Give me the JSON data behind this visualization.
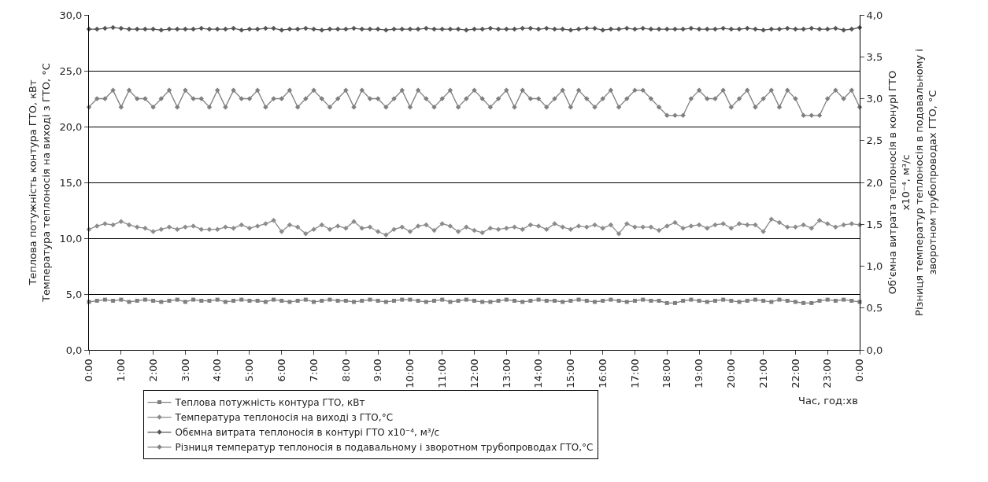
{
  "chart_data": {
    "type": "line",
    "x": [
      0,
      0.25,
      0.5,
      0.75,
      1,
      1.25,
      1.5,
      1.75,
      2,
      2.25,
      2.5,
      2.75,
      3,
      3.25,
      3.5,
      3.75,
      4,
      4.25,
      4.5,
      4.75,
      5,
      5.25,
      5.5,
      5.75,
      6,
      6.25,
      6.5,
      6.75,
      7,
      7.25,
      7.5,
      7.75,
      8,
      8.25,
      8.5,
      8.75,
      9,
      9.25,
      9.5,
      9.75,
      10,
      10.25,
      10.5,
      10.75,
      11,
      11.25,
      11.5,
      11.75,
      12,
      12.25,
      12.5,
      12.75,
      13,
      13.25,
      13.5,
      13.75,
      14,
      14.25,
      14.5,
      14.75,
      15,
      15.25,
      15.5,
      15.75,
      16,
      16.25,
      16.5,
      16.75,
      17,
      17.25,
      17.5,
      17.75,
      18,
      18.25,
      18.5,
      18.75,
      19,
      19.25,
      19.5,
      19.75,
      20,
      20.25,
      20.5,
      20.75,
      21,
      21.25,
      21.5,
      21.75,
      22,
      22.25,
      22.5,
      22.75,
      23,
      23.25,
      23.5,
      23.75,
      24
    ],
    "series": [
      {
        "name": "Теплова потужність контура ГТО, кВт",
        "color": "#7f7f7f",
        "marker": "square",
        "values": [
          4.3,
          4.4,
          4.5,
          4.4,
          4.5,
          4.3,
          4.4,
          4.5,
          4.4,
          4.3,
          4.4,
          4.5,
          4.3,
          4.5,
          4.4,
          4.4,
          4.5,
          4.3,
          4.4,
          4.5,
          4.4,
          4.4,
          4.3,
          4.5,
          4.4,
          4.3,
          4.4,
          4.5,
          4.3,
          4.4,
          4.5,
          4.4,
          4.4,
          4.3,
          4.4,
          4.5,
          4.4,
          4.3,
          4.4,
          4.5,
          4.5,
          4.4,
          4.3,
          4.4,
          4.5,
          4.3,
          4.4,
          4.5,
          4.4,
          4.3,
          4.3,
          4.4,
          4.5,
          4.4,
          4.3,
          4.4,
          4.5,
          4.4,
          4.4,
          4.3,
          4.4,
          4.5,
          4.4,
          4.3,
          4.4,
          4.5,
          4.4,
          4.3,
          4.4,
          4.5,
          4.4,
          4.4,
          4.2,
          4.2,
          4.4,
          4.5,
          4.4,
          4.3,
          4.4,
          4.5,
          4.4,
          4.3,
          4.4,
          4.5,
          4.4,
          4.3,
          4.5,
          4.4,
          4.3,
          4.2,
          4.2,
          4.4,
          4.5,
          4.4,
          4.5,
          4.4,
          4.3
        ]
      },
      {
        "name": "Температура теплоносія на виході з ГТО,°С",
        "color": "#8c8c8c",
        "marker": "diamond",
        "values": [
          10.8,
          11.1,
          11.3,
          11.2,
          11.5,
          11.2,
          11.0,
          10.9,
          10.6,
          10.8,
          11.0,
          10.8,
          11.0,
          11.1,
          10.8,
          10.8,
          10.8,
          11.0,
          10.9,
          11.2,
          10.9,
          11.1,
          11.3,
          11.6,
          10.6,
          11.2,
          11.0,
          10.4,
          10.8,
          11.2,
          10.8,
          11.1,
          10.9,
          11.5,
          10.9,
          11.0,
          10.6,
          10.3,
          10.8,
          11.0,
          10.6,
          11.1,
          11.2,
          10.7,
          11.3,
          11.1,
          10.6,
          11.0,
          10.7,
          10.5,
          10.9,
          10.8,
          10.9,
          11.0,
          10.8,
          11.2,
          11.1,
          10.8,
          11.3,
          11.0,
          10.8,
          11.1,
          11.0,
          11.2,
          10.9,
          11.2,
          10.4,
          11.3,
          11.0,
          11.0,
          11.0,
          10.7,
          11.1,
          11.4,
          10.9,
          11.1,
          11.2,
          10.9,
          11.2,
          11.3,
          10.9,
          11.3,
          11.2,
          11.2,
          10.6,
          11.7,
          11.4,
          11.0,
          11.0,
          11.2,
          10.9,
          11.6,
          11.3,
          11.0,
          11.2,
          11.3,
          11.2
        ]
      },
      {
        "name": "Обємна витрата теплоносія в контурі ГТО x10⁻⁴, м³/с",
        "color": "#555555",
        "marker": "diamond",
        "axis": "y2",
        "values": [
          3.83,
          3.83,
          3.84,
          3.85,
          3.84,
          3.83,
          3.83,
          3.83,
          3.83,
          3.82,
          3.83,
          3.83,
          3.83,
          3.83,
          3.84,
          3.83,
          3.83,
          3.83,
          3.84,
          3.82,
          3.83,
          3.83,
          3.84,
          3.84,
          3.82,
          3.83,
          3.83,
          3.84,
          3.83,
          3.82,
          3.83,
          3.83,
          3.83,
          3.84,
          3.83,
          3.83,
          3.83,
          3.82,
          3.83,
          3.83,
          3.83,
          3.83,
          3.84,
          3.83,
          3.83,
          3.83,
          3.83,
          3.82,
          3.83,
          3.83,
          3.84,
          3.83,
          3.83,
          3.83,
          3.84,
          3.84,
          3.83,
          3.84,
          3.83,
          3.83,
          3.82,
          3.83,
          3.84,
          3.84,
          3.82,
          3.83,
          3.83,
          3.84,
          3.83,
          3.84,
          3.83,
          3.83,
          3.83,
          3.83,
          3.83,
          3.84,
          3.83,
          3.83,
          3.83,
          3.84,
          3.83,
          3.83,
          3.84,
          3.83,
          3.82,
          3.83,
          3.83,
          3.84,
          3.83,
          3.83,
          3.84,
          3.83,
          3.83,
          3.84,
          3.82,
          3.83,
          3.85
        ]
      },
      {
        "name": "Різниця температур теплоносія в подавальному і зворотном трубопроводах ГТО,°С",
        "color": "#808080",
        "marker": "diamond",
        "axis": "y2",
        "values": [
          2.9,
          3.0,
          3.0,
          3.1,
          2.9,
          3.1,
          3.0,
          3.0,
          2.9,
          3.0,
          3.1,
          2.9,
          3.1,
          3.0,
          3.0,
          2.9,
          3.1,
          2.9,
          3.1,
          3.0,
          3.0,
          3.1,
          2.9,
          3.0,
          3.0,
          3.1,
          2.9,
          3.0,
          3.1,
          3.0,
          2.9,
          3.0,
          3.1,
          2.9,
          3.1,
          3.0,
          3.0,
          2.9,
          3.0,
          3.1,
          2.9,
          3.1,
          3.0,
          2.9,
          3.0,
          3.1,
          2.9,
          3.0,
          3.1,
          3.0,
          2.9,
          3.0,
          3.1,
          2.9,
          3.1,
          3.0,
          3.0,
          2.9,
          3.0,
          3.1,
          2.9,
          3.1,
          3.0,
          2.9,
          3.0,
          3.1,
          2.9,
          3.0,
          3.1,
          3.1,
          3.0,
          2.9,
          2.8,
          2.8,
          2.8,
          3.0,
          3.1,
          3.0,
          3.0,
          3.1,
          2.9,
          3.0,
          3.1,
          2.9,
          3.0,
          3.1,
          2.9,
          3.1,
          3.0,
          2.8,
          2.8,
          2.8,
          3.0,
          3.1,
          3.0,
          3.1,
          2.9
        ]
      }
    ],
    "xlabel": "Час, год:хв",
    "ylabel": "Теплова потужність контура ГТО, кВт\nТемпература теплоносія на виході з ГТО, °С",
    "y2label": "Об'ємна витрата теплоносія в конурі ГТО\nx10⁻⁴, м³/с\nРізниця температур теплоносія в подавальному і\nзворотном трубопроводах ГТО, °С",
    "xlim": [
      0,
      24
    ],
    "xticks": [
      {
        "value": 0,
        "label": "0:00"
      },
      {
        "value": 1,
        "label": "1:00"
      },
      {
        "value": 2,
        "label": "2:00"
      },
      {
        "value": 3,
        "label": "3:00"
      },
      {
        "value": 4,
        "label": "4:00"
      },
      {
        "value": 5,
        "label": "5:00"
      },
      {
        "value": 6,
        "label": "6:00"
      },
      {
        "value": 7,
        "label": "7:00"
      },
      {
        "value": 8,
        "label": "8:00"
      },
      {
        "value": 9,
        "label": "9:00"
      },
      {
        "value": 10,
        "label": "10:00"
      },
      {
        "value": 11,
        "label": "11:00"
      },
      {
        "value": 12,
        "label": "12:00"
      },
      {
        "value": 13,
        "label": "13:00"
      },
      {
        "value": 14,
        "label": "14:00"
      },
      {
        "value": 15,
        "label": "15:00"
      },
      {
        "value": 16,
        "label": "16:00"
      },
      {
        "value": 17,
        "label": "17:00"
      },
      {
        "value": 18,
        "label": "18:00"
      },
      {
        "value": 19,
        "label": "19:00"
      },
      {
        "value": 20,
        "label": "20:00"
      },
      {
        "value": 21,
        "label": "21:00"
      },
      {
        "value": 22,
        "label": "22:00"
      },
      {
        "value": 23,
        "label": "23:00"
      },
      {
        "value": 24,
        "label": "0:00"
      }
    ],
    "ylim": [
      0,
      30
    ],
    "yticks": [
      {
        "value": 0,
        "label": "0,0"
      },
      {
        "value": 5,
        "label": "5,0"
      },
      {
        "value": 10,
        "label": "10,0"
      },
      {
        "value": 15,
        "label": "15,0"
      },
      {
        "value": 20,
        "label": "20,0"
      },
      {
        "value": 25,
        "label": "25,0"
      },
      {
        "value": 30,
        "label": "30,0"
      }
    ],
    "y2lim": [
      0,
      4
    ],
    "y2ticks": [
      {
        "value": 0,
        "label": "0,0"
      },
      {
        "value": 0.5,
        "label": "0,5"
      },
      {
        "value": 1,
        "label": "1,0"
      },
      {
        "value": 1.5,
        "label": "1,5"
      },
      {
        "value": 2,
        "label": "2,0"
      },
      {
        "value": 2.5,
        "label": "2,5"
      },
      {
        "value": 3,
        "label": "3,0"
      },
      {
        "value": 3.5,
        "label": "3,5"
      },
      {
        "value": 4,
        "label": "4,0"
      }
    ],
    "grid": "y",
    "legend": "bottom",
    "line_style": "solid"
  }
}
